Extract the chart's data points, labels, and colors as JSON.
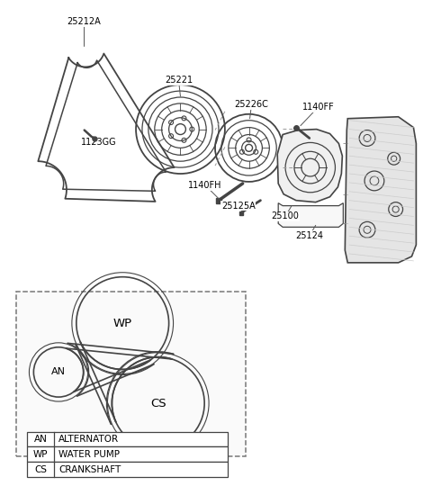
{
  "bg_color": "#ffffff",
  "line_color": "#444444",
  "legend_parts": [
    [
      "AN",
      "ALTERNATOR"
    ],
    [
      "WP",
      "WATER PUMP"
    ],
    [
      "CS",
      "CRANKSHAFT"
    ]
  ],
  "labels": [
    {
      "text": "25212A",
      "ix": 92,
      "iy": 22
    },
    {
      "text": "1123GG",
      "ix": 105,
      "iy": 155
    },
    {
      "text": "25221",
      "ix": 198,
      "iy": 88
    },
    {
      "text": "25226C",
      "ix": 278,
      "iy": 118
    },
    {
      "text": "1140FF",
      "ix": 355,
      "iy": 118
    },
    {
      "text": "1140FH",
      "ix": 230,
      "iy": 205
    },
    {
      "text": "25125A",
      "ix": 265,
      "iy": 228
    },
    {
      "text": "25100",
      "ix": 320,
      "iy": 240
    },
    {
      "text": "25124",
      "ix": 345,
      "iy": 263
    }
  ]
}
